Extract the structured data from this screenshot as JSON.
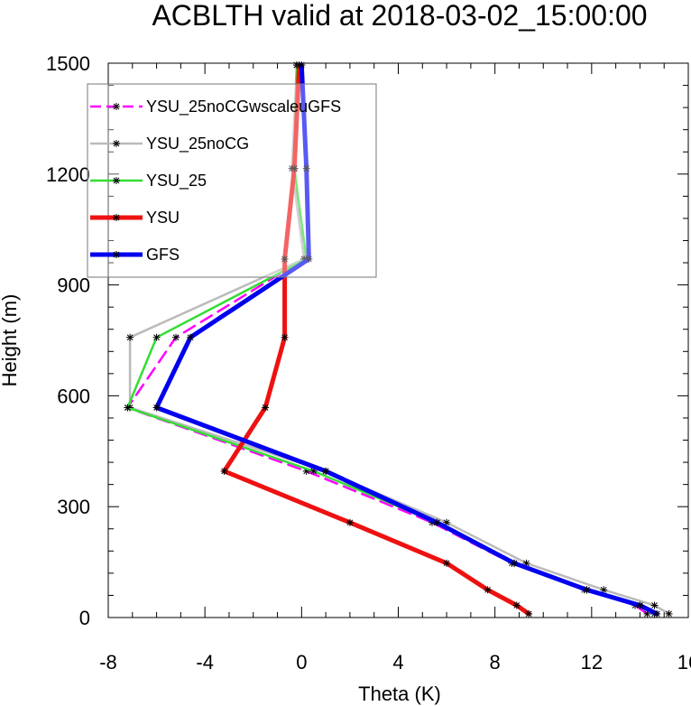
{
  "chart_data": {
    "type": "line",
    "title": "ACBLTH valid at 2018-03-02_15:00:00",
    "xlabel": "Theta (K)",
    "ylabel": "Height (m)",
    "xlim": [
      -8,
      16
    ],
    "ylim": [
      0,
      1500
    ],
    "xticks": [
      -8,
      -4,
      0,
      4,
      8,
      12,
      16
    ],
    "yticks": [
      0,
      300,
      600,
      900,
      1200,
      1500
    ],
    "xtick_labels": [
      "-8",
      "-4",
      "0",
      "4",
      "8",
      "12",
      "16"
    ],
    "ytick_labels": [
      "0",
      "300",
      "600",
      "900",
      "1200",
      "1500"
    ],
    "grid": false,
    "legend_position": "upper-left",
    "series": [
      {
        "name": "YSU_25noCGwscaleuGFS",
        "color": "#ff00ff",
        "dash": "dashed",
        "points": [
          [
            14.3,
            10
          ],
          [
            13.8,
            33
          ],
          [
            11.7,
            75
          ],
          [
            8.7,
            147
          ],
          [
            5.4,
            257
          ],
          [
            0.2,
            396
          ],
          [
            -7.2,
            568
          ],
          [
            -5.2,
            758
          ],
          [
            0.1,
            970
          ],
          [
            -0.3,
            1215
          ],
          [
            -0.2,
            1495
          ]
        ]
      },
      {
        "name": "YSU_25noCG",
        "color": "#bbbbbb",
        "dash": "solid",
        "points": [
          [
            15.2,
            10
          ],
          [
            14.6,
            33
          ],
          [
            12.5,
            75
          ],
          [
            9.3,
            147
          ],
          [
            6.0,
            257
          ],
          [
            1.0,
            396
          ],
          [
            -7.1,
            568
          ],
          [
            -7.1,
            758
          ],
          [
            0.1,
            970
          ],
          [
            -0.4,
            1215
          ],
          [
            -0.2,
            1495
          ]
        ]
      },
      {
        "name": "YSU_25",
        "color": "#33dd33",
        "dash": "solid",
        "points": [
          [
            14.6,
            10
          ],
          [
            14.0,
            33
          ],
          [
            11.8,
            75
          ],
          [
            8.8,
            147
          ],
          [
            5.6,
            257
          ],
          [
            0.5,
            396
          ],
          [
            -7.2,
            568
          ],
          [
            -6.0,
            758
          ],
          [
            0.2,
            970
          ],
          [
            -0.3,
            1215
          ],
          [
            -0.2,
            1495
          ]
        ]
      },
      {
        "name": "YSU",
        "color": "#ee1111",
        "dash": "solid",
        "points": [
          [
            9.4,
            10
          ],
          [
            8.9,
            33
          ],
          [
            7.7,
            75
          ],
          [
            6.0,
            147
          ],
          [
            2.0,
            257
          ],
          [
            -3.2,
            396
          ],
          [
            -1.5,
            568
          ],
          [
            -0.7,
            758
          ],
          [
            -0.7,
            970
          ],
          [
            -0.3,
            1215
          ],
          [
            -0.1,
            1495
          ]
        ]
      },
      {
        "name": "GFS",
        "color": "#0000ee",
        "dash": "solid",
        "points": [
          [
            14.7,
            10
          ],
          [
            14.0,
            33
          ],
          [
            11.8,
            75
          ],
          [
            8.8,
            147
          ],
          [
            5.6,
            257
          ],
          [
            1.0,
            396
          ],
          [
            -6.0,
            568
          ],
          [
            -4.6,
            758
          ],
          [
            0.3,
            970
          ],
          [
            0.2,
            1215
          ],
          [
            0.0,
            1495
          ]
        ]
      }
    ]
  }
}
